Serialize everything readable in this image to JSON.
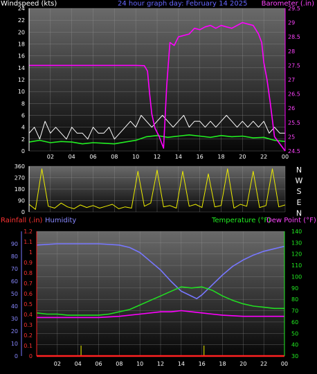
{
  "chart_data": [
    {
      "type": "line",
      "panel": "wind_baro",
      "title": "24 hour graph day:  February 14 2025",
      "ylabel_left": "Windspeed (kts)",
      "ylabel_right": "Barometer (.in)",
      "x_ticks": [
        "02",
        "04",
        "06",
        "08",
        "10",
        "12",
        "14",
        "16",
        "18",
        "20",
        "22",
        "00"
      ],
      "xlim_hours": [
        0,
        24
      ],
      "left_axis": {
        "ticks": [
          "0",
          "2",
          "4",
          "6",
          "8",
          "10",
          "12",
          "14",
          "16",
          "18",
          "20",
          "22",
          "24"
        ],
        "ylim": [
          0,
          24
        ]
      },
      "right_axis": {
        "ticks": [
          "24.5",
          "25",
          "25.5",
          "26",
          "26.5",
          "27",
          "27.5",
          "28",
          "28.5",
          "29",
          "29.5"
        ],
        "ylim": [
          24.5,
          29.5
        ]
      },
      "series": [
        {
          "name": "Windspeed (kts)",
          "color": "#ffffff",
          "kind": "gust",
          "x": [
            0,
            0.5,
            1,
            1.5,
            2,
            2.5,
            3,
            3.5,
            4,
            4.5,
            5,
            5.5,
            6,
            6.5,
            7,
            7.5,
            8,
            8.5,
            9,
            9.5,
            10,
            10.5,
            11,
            11.5,
            12,
            12.5,
            13,
            13.5,
            14,
            14.5,
            15,
            15.5,
            16,
            16.5,
            17,
            17.5,
            18,
            18.5,
            19,
            19.5,
            20,
            20.5,
            21,
            21.5,
            22,
            22.5,
            23,
            23.5,
            24
          ],
          "values": [
            3,
            4,
            2,
            5,
            3,
            4,
            3,
            2,
            4,
            3,
            3,
            2,
            4,
            3,
            3,
            4,
            2,
            3,
            4,
            5,
            4,
            6,
            5,
            4,
            5,
            6,
            5,
            4,
            5,
            6,
            4,
            5,
            5,
            4,
            5,
            4,
            5,
            6,
            5,
            4,
            5,
            4,
            5,
            4,
            5,
            3,
            4,
            3,
            3
          ]
        },
        {
          "name": "Average windspeed",
          "color": "#22ee22",
          "kind": "average",
          "x": [
            0,
            1,
            2,
            3,
            4,
            5,
            6,
            7,
            8,
            9,
            10,
            11,
            12,
            13,
            14,
            15,
            16,
            17,
            18,
            19,
            20,
            21,
            22,
            23,
            24
          ],
          "values": [
            1.5,
            1.8,
            1.4,
            1.6,
            1.5,
            1.2,
            1.4,
            1.3,
            1.2,
            1.5,
            1.8,
            2.4,
            2.6,
            2.3,
            2.5,
            2.7,
            2.5,
            2.3,
            2.6,
            2.4,
            2.5,
            2.2,
            2.3,
            1.8,
            1.6
          ]
        },
        {
          "name": "Barometer (.in)",
          "color": "#ff00ff",
          "axis": "right",
          "x": [
            0,
            2,
            4,
            6,
            8,
            10,
            10.8,
            11.1,
            11.3,
            11.5,
            11.8,
            12.2,
            12.6,
            12.9,
            13.2,
            13.6,
            14,
            15,
            15.5,
            16,
            16.5,
            17,
            17.5,
            18,
            18.5,
            19,
            19.5,
            20,
            20.5,
            21,
            21.5,
            21.8,
            22,
            22.3,
            22.6,
            23,
            24
          ],
          "values": [
            27.5,
            27.5,
            27.5,
            27.5,
            27.5,
            27.5,
            27.49,
            27.3,
            26.5,
            25.8,
            25.3,
            25.0,
            24.6,
            26.8,
            28.3,
            28.2,
            28.5,
            28.6,
            28.8,
            28.75,
            28.85,
            28.9,
            28.8,
            28.9,
            28.85,
            28.8,
            28.9,
            29.0,
            28.95,
            28.9,
            28.6,
            28.3,
            27.6,
            27.0,
            26.2,
            25.0,
            24.5
          ]
        }
      ]
    },
    {
      "type": "line",
      "panel": "wind_direction",
      "ylabel_left": "",
      "y_ticks": [
        "0",
        "90",
        "180",
        "270",
        "360"
      ],
      "compass": [
        "N",
        "W",
        "S",
        "E",
        "N"
      ],
      "ylim": [
        0,
        360
      ],
      "xlim_hours": [
        0,
        24
      ],
      "series": [
        {
          "name": "Wind direction",
          "color": "#eeee00",
          "x": [
            0,
            0.6,
            1.2,
            1.8,
            2.4,
            3,
            3.6,
            4.2,
            4.8,
            5.4,
            6,
            6.6,
            7.2,
            7.8,
            8.4,
            9,
            9.6,
            10.2,
            10.8,
            11.4,
            12,
            12.6,
            13.2,
            13.8,
            14.4,
            15,
            15.6,
            16.2,
            16.8,
            17.4,
            18,
            18.6,
            19.2,
            19.8,
            20.4,
            21,
            21.6,
            22.2,
            22.8,
            23.4,
            24
          ],
          "values": [
            60,
            20,
            340,
            45,
            30,
            70,
            40,
            25,
            55,
            35,
            50,
            30,
            45,
            60,
            25,
            40,
            30,
            320,
            45,
            70,
            330,
            40,
            50,
            30,
            320,
            45,
            60,
            35,
            300,
            40,
            50,
            340,
            30,
            60,
            45,
            320,
            35,
            50,
            340,
            40,
            55
          ]
        }
      ]
    },
    {
      "type": "line",
      "panel": "rain_hum_temp",
      "ylabel_left": "Rainfall (.in)",
      "ylabel_left2": "Humidity",
      "ylabel_right": "Temperature (°F)",
      "ylabel_right2": "Dew Point (°F)",
      "xlim_hours": [
        0,
        24
      ],
      "humidity_axis": {
        "ticks": [
          "0",
          "10",
          "20",
          "30",
          "40",
          "50",
          "60",
          "70",
          "80",
          "90"
        ],
        "ylim": [
          0,
          100
        ]
      },
      "rain_axis": {
        "ticks": [
          "0",
          "0.1",
          "0.2",
          "0.3",
          "0.4",
          "0.5",
          "0.6",
          "0.7",
          "0.8",
          "0.9",
          "1",
          "1.1",
          "1.2"
        ],
        "ylim": [
          0,
          1.2
        ]
      },
      "temp_axis": {
        "ticks": [
          "30",
          "40",
          "50",
          "60",
          "70",
          "80",
          "90",
          "100",
          "110",
          "120",
          "130",
          "140"
        ],
        "ylim": [
          30,
          140
        ]
      },
      "series": [
        {
          "name": "Humidity",
          "color": "#7777ff",
          "axis": "humidity",
          "x": [
            0,
            2,
            4,
            6,
            8,
            9,
            10,
            11,
            12,
            13,
            14,
            15,
            15.5,
            16,
            17,
            18,
            19,
            20,
            21,
            22,
            23,
            24
          ],
          "values": [
            89,
            90,
            90,
            90,
            89,
            87,
            83,
            76,
            69,
            60,
            52,
            48,
            46,
            49,
            57,
            65,
            72,
            77,
            81,
            84,
            86,
            88
          ]
        },
        {
          "name": "Temperature (°F)",
          "color": "#22dd22",
          "axis": "temp",
          "x": [
            0,
            1,
            2,
            3,
            4,
            5,
            6,
            7,
            8,
            9,
            10,
            11,
            12,
            13,
            14,
            15,
            16,
            17,
            18,
            19,
            20,
            21,
            22,
            23,
            24
          ],
          "values": [
            68,
            67,
            67,
            66,
            66,
            66,
            66,
            67,
            69,
            71,
            75,
            79,
            83,
            87,
            91,
            90,
            91,
            88,
            83,
            79,
            76,
            74,
            73,
            72,
            72
          ]
        },
        {
          "name": "Dew Point (°F)",
          "color": "#ff00ff",
          "axis": "temp",
          "x": [
            0,
            2,
            4,
            6,
            8,
            10,
            12,
            13,
            14,
            15,
            16,
            17,
            18,
            20,
            22,
            24
          ],
          "values": [
            64,
            64,
            64,
            64,
            65,
            67,
            69,
            69,
            70,
            69,
            68,
            67,
            66,
            65,
            65,
            65
          ]
        },
        {
          "name": "Rainfall (.in)",
          "color": "#ff2222",
          "axis": "rain",
          "x": [
            0,
            24
          ],
          "values": [
            0,
            0
          ]
        }
      ],
      "bars": {
        "name": "Rain rate",
        "color": "#aaaa00",
        "x": [
          4.3,
          16.2
        ],
        "values": [
          0.1,
          0.1
        ]
      }
    }
  ]
}
